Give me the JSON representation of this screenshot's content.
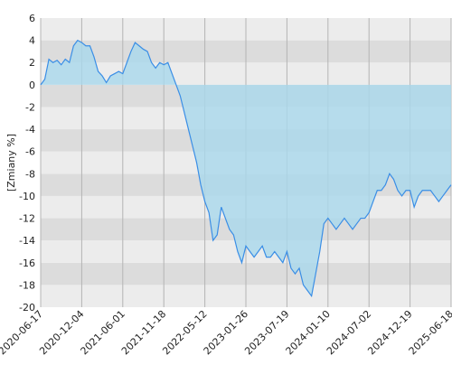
{
  "chart_data": {
    "type": "area",
    "y_label": "[Zmiany %]",
    "categories": [
      "2020-06-17",
      null,
      null,
      null,
      null,
      null,
      null,
      null,
      null,
      null,
      "2020-12-04",
      null,
      null,
      null,
      null,
      null,
      null,
      null,
      null,
      null,
      "2021-06-01",
      null,
      null,
      null,
      null,
      null,
      null,
      null,
      null,
      null,
      "2021-11-18",
      null,
      null,
      null,
      null,
      null,
      null,
      null,
      null,
      null,
      "2022-05-12",
      null,
      null,
      null,
      null,
      null,
      null,
      null,
      null,
      null,
      "2023-01-26",
      null,
      null,
      null,
      null,
      null,
      null,
      null,
      null,
      null,
      "2023-07-19",
      null,
      null,
      null,
      null,
      null,
      null,
      null,
      null,
      null,
      "2024-01-10",
      null,
      null,
      null,
      null,
      null,
      null,
      null,
      null,
      null,
      "2024-07-02",
      null,
      null,
      null,
      null,
      null,
      null,
      null,
      null,
      null,
      "2024-12-19",
      null,
      null,
      null,
      null,
      null,
      null,
      null,
      null,
      null,
      "2025-06-18"
    ],
    "series": [
      {
        "color": "#3a8ee6",
        "fill": "#a9d8ec",
        "values": [
          0,
          0.5,
          2.3,
          2.0,
          2.2,
          1.8,
          2.3,
          2.0,
          3.5,
          4.0,
          3.8,
          3.5,
          3.5,
          2.5,
          1.2,
          0.8,
          0.2,
          0.8,
          1.0,
          1.2,
          1.0,
          2.0,
          3.0,
          3.8,
          3.5,
          3.2,
          3.0,
          2.0,
          1.5,
          2.0,
          1.8,
          2.0,
          1.0,
          0.0,
          -1.0,
          -2.5,
          -4,
          -5.5,
          -7,
          -9,
          -10.5,
          -11.5,
          -14,
          -13.5,
          -11,
          -12,
          -13,
          -13.5,
          -15,
          -16,
          -14.5,
          -15,
          -15.5,
          -15,
          -14.5,
          -15.5,
          -15.5,
          -15,
          -15.5,
          -16,
          -15,
          -16.5,
          -17,
          -16.5,
          -18,
          -18.5,
          -19,
          -17,
          -15,
          -12.5,
          -12,
          -12.5,
          -13,
          -12.5,
          -12,
          -12.5,
          -13,
          -12.5,
          -12,
          -12,
          -11.5,
          -10.5,
          -9.5,
          -9.5,
          -9,
          -8,
          -8.5,
          -9.5,
          -10,
          -9.5,
          -9.5,
          -11,
          -10,
          -9.5,
          -9.5,
          -9.5,
          -10,
          -10.5,
          -10,
          -9.5,
          -9
        ]
      }
    ],
    "ylim": [
      -20,
      6
    ],
    "yticks": [
      -20,
      -18,
      -16,
      -14,
      -12,
      -10,
      -8,
      -6,
      -4,
      -2,
      0,
      2,
      4,
      6
    ],
    "grid": true,
    "band_colors": [
      "#dcdcdc",
      "#ececec"
    ],
    "grid_color": "#b4b4b4"
  }
}
